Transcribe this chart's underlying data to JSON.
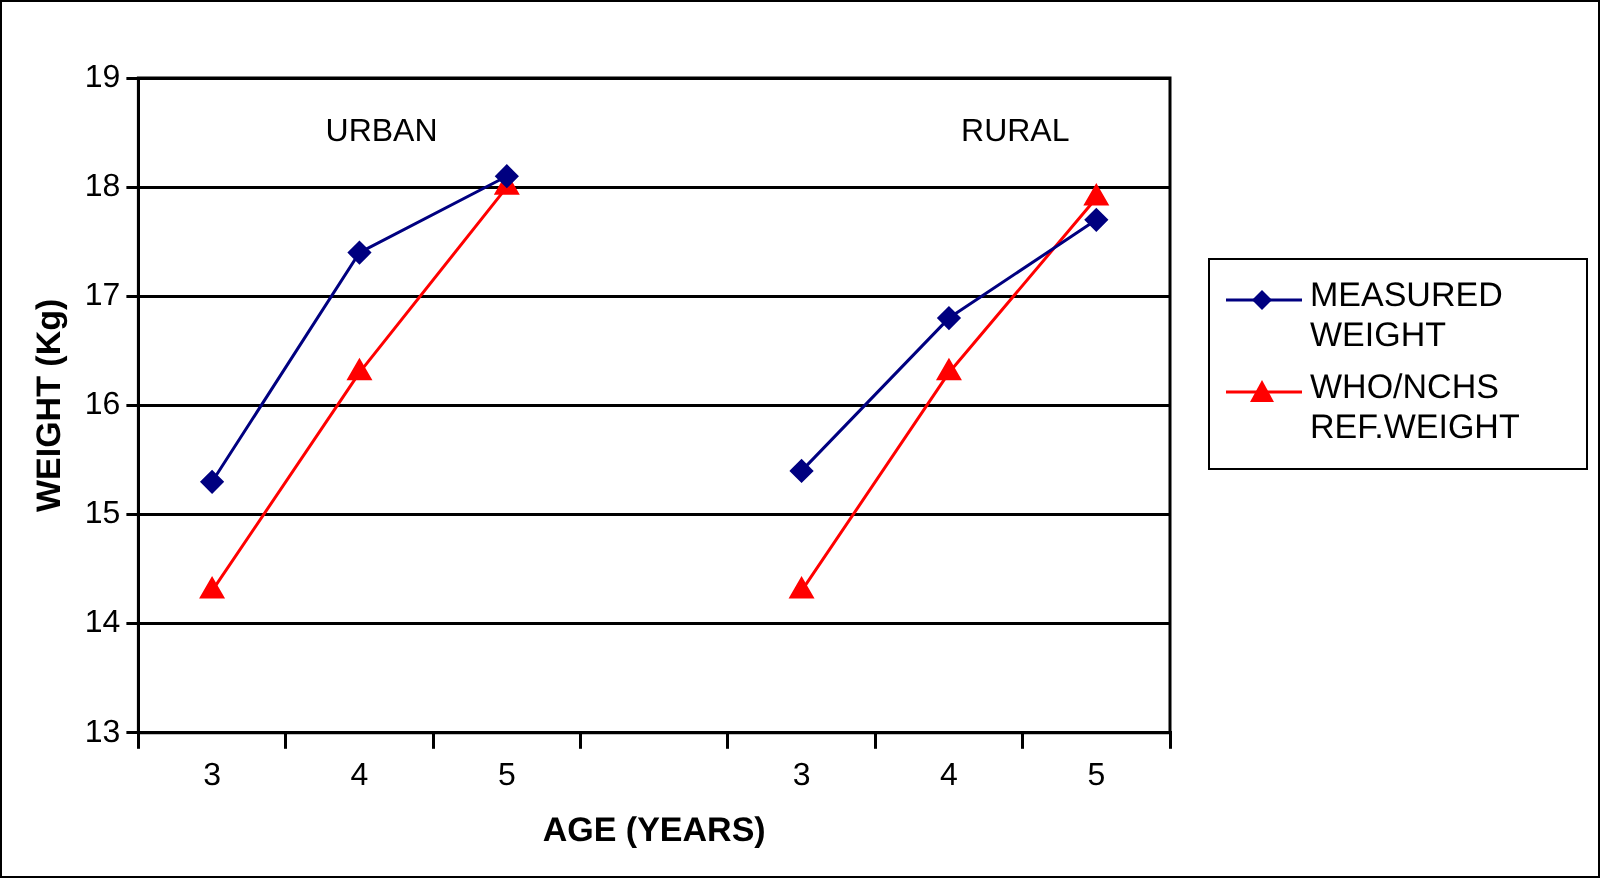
{
  "chart_data": {
    "type": "line",
    "xlabel": "AGE (YEARS)",
    "ylabel": "WEIGHT (Kg)",
    "categories": [
      "3",
      "4",
      "5",
      null,
      "3",
      "4",
      "5"
    ],
    "series": [
      {
        "name": "MEASURED WEIGHT",
        "color": "#000080",
        "marker": "diamond",
        "values": [
          15.3,
          17.4,
          18.1,
          null,
          15.4,
          16.8,
          17.7
        ]
      },
      {
        "name": "WHO/NCHS REF.WEIGHT",
        "color": "#ff0000",
        "marker": "triangle",
        "values": [
          14.3,
          16.3,
          18.0,
          null,
          14.3,
          16.3,
          17.9
        ]
      }
    ],
    "ylim": [
      13,
      19
    ],
    "yticks": [
      13,
      14,
      15,
      16,
      17,
      18,
      19
    ],
    "grid": "y",
    "legend": "right",
    "line_style": "solid",
    "annotations": [
      "URBAN",
      "RURAL"
    ]
  }
}
